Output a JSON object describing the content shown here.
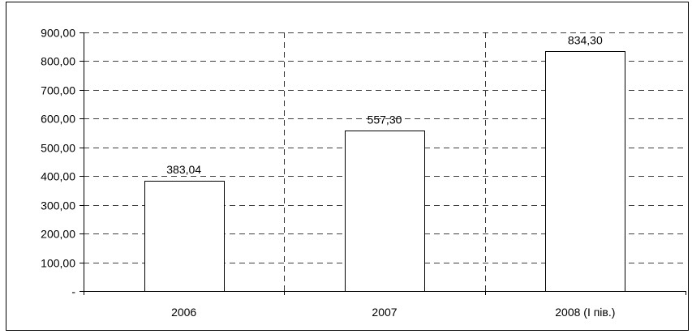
{
  "chart_data": {
    "type": "bar",
    "categories": [
      "2006",
      "2007",
      "2008 (I пів.)"
    ],
    "values": [
      383.04,
      557.3,
      834.3
    ],
    "data_labels": [
      "383,04",
      "557,30",
      "834,30"
    ],
    "ylim": [
      0,
      900
    ],
    "yticks": [
      0,
      100,
      200,
      300,
      400,
      500,
      600,
      700,
      800,
      900
    ],
    "ytick_labels": [
      "-",
      "100,00",
      "200,00",
      "300,00",
      "400,00",
      "500,00",
      "600,00",
      "700,00",
      "800,00",
      "900,00"
    ],
    "grid": "dashed, horizontal and vertical",
    "legend": "none",
    "colors": {
      "bar_fill": "#ffffff",
      "bar_stroke": "#000000",
      "grid": "#000000"
    }
  }
}
